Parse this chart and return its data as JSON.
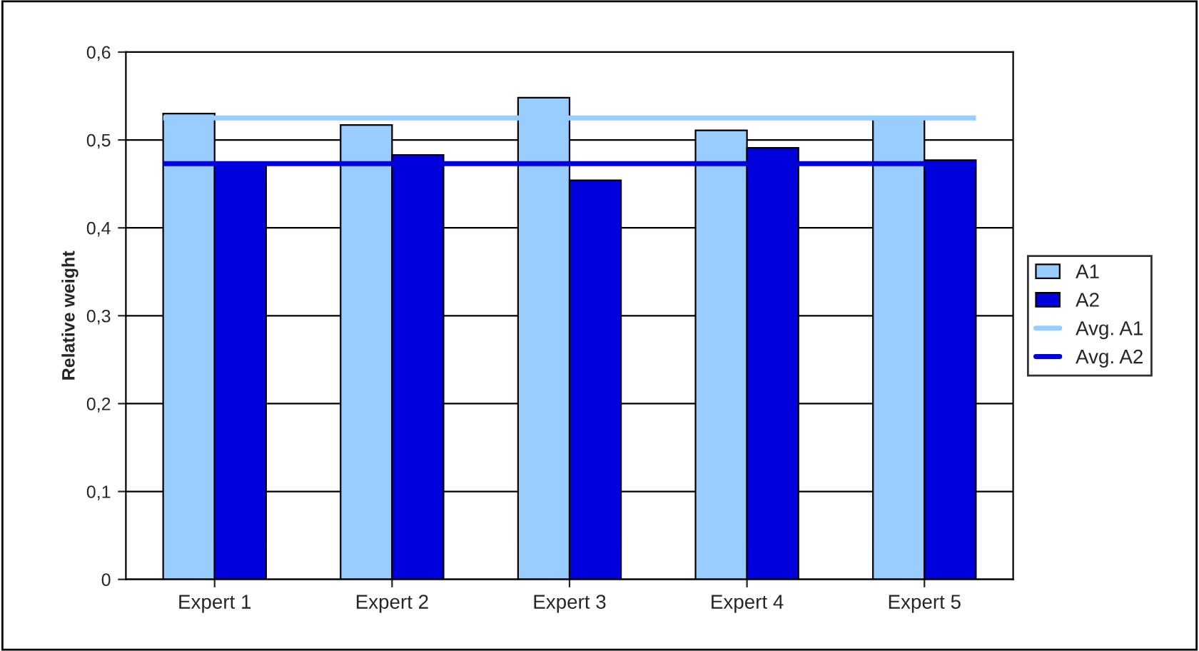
{
  "chart_data": {
    "type": "bar",
    "ylabel": "Relative weight",
    "categories": [
      "Expert 1",
      "Expert 2",
      "Expert 3",
      "Expert 4",
      "Expert 5"
    ],
    "series": [
      {
        "name": "A1",
        "color": "#99ccff",
        "values": [
          0.53,
          0.517,
          0.548,
          0.511,
          0.525
        ]
      },
      {
        "name": "A2",
        "color": "#0000dd",
        "values": [
          0.473,
          0.483,
          0.454,
          0.491,
          0.477
        ]
      }
    ],
    "ref_lines": [
      {
        "axis": "y",
        "value": 0.525,
        "label": "Avg. A1",
        "color": "#99ccff"
      },
      {
        "axis": "y",
        "value": 0.473,
        "label": "Avg. A2",
        "color": "#0000dd"
      }
    ],
    "ylim": [
      0,
      0.6
    ],
    "yticks": [
      {
        "value": 0,
        "label": "0"
      },
      {
        "value": 0.1,
        "label": "0,1"
      },
      {
        "value": 0.2,
        "label": "0,2"
      },
      {
        "value": 0.3,
        "label": "0,3"
      },
      {
        "value": 0.4,
        "label": "0,4"
      },
      {
        "value": 0.5,
        "label": "0,5"
      },
      {
        "value": 0.6,
        "label": "0,6"
      }
    ],
    "grid": "y",
    "legend": "right"
  }
}
